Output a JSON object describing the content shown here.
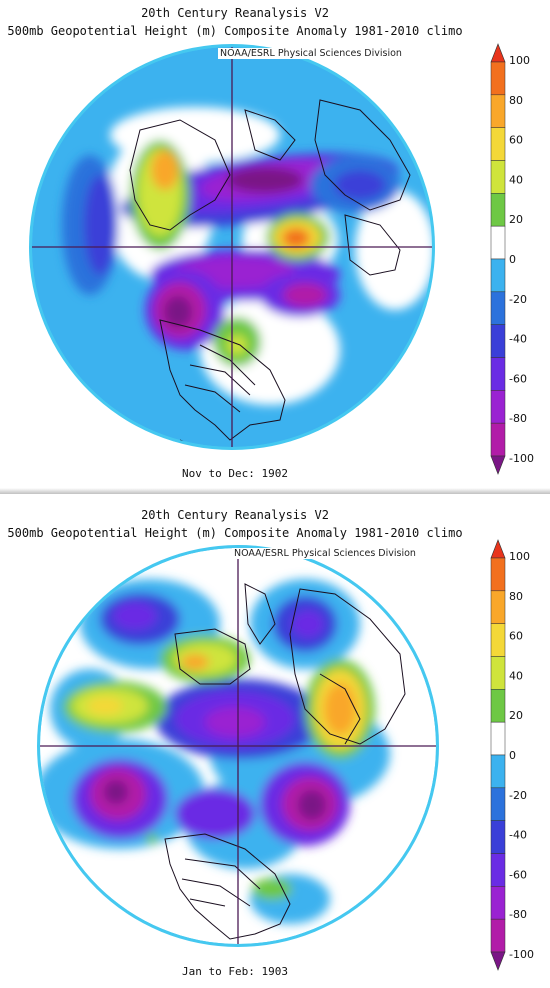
{
  "colors": {
    "land_outline": "#1a0f20",
    "grid_line": "#4a1a55",
    "outer_ring": "#45c8f0"
  },
  "colorbar": {
    "labels": [
      "100",
      "80",
      "60",
      "40",
      "20",
      "0",
      "-20",
      "-40",
      "-60",
      "-80",
      "-100"
    ],
    "colors": [
      "#e8341c",
      "#f2701e",
      "#f9a72a",
      "#f4d838",
      "#cfe43c",
      "#6ec845",
      "#ffffff",
      "#3cb2ef",
      "#2c72dc",
      "#3a3fd8",
      "#6a2ce4",
      "#9a22d2",
      "#b11ca8",
      "#7a1686"
    ]
  },
  "panels": [
    {
      "title": "20th Century Reanalysis V2",
      "subtitle": "500mb Geopotential Height (m) Composite Anomaly 1981-2010 climo",
      "credit": "NOAA/ESRL Physical Sciences Division",
      "period": "Nov to Dec: 1902"
    },
    {
      "title": "20th Century Reanalysis V2",
      "subtitle": "500mb Geopotential Height (m) Composite Anomaly 1981-2010 climo",
      "credit": "NOAA/ESRL Physical Sciences Division",
      "period": "Jan to Feb: 1903"
    }
  ]
}
